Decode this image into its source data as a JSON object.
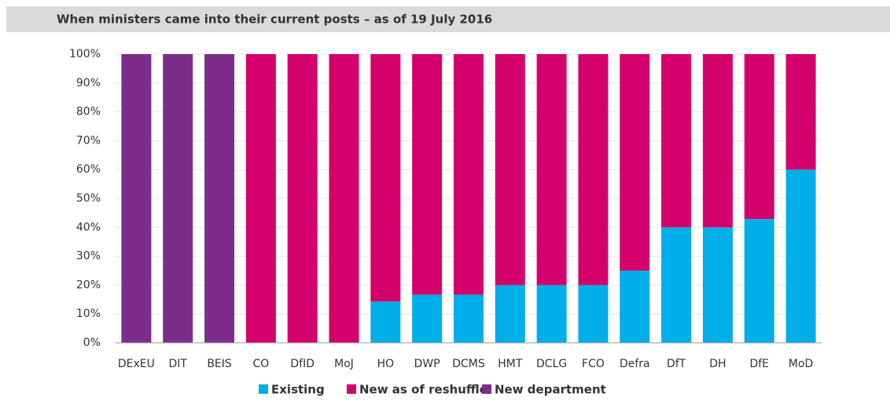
{
  "chart_data": {
    "type": "stacked_bar",
    "title": "When ministers came into their current posts – as of 19 July 2016",
    "categories": [
      "DExEU",
      "DIT",
      "BEIS",
      "CO",
      "DfID",
      "MoJ",
      "HO",
      "DWP",
      "DCMS",
      "HMT",
      "DCLG",
      "FCO",
      "Defra",
      "DfT",
      "DH",
      "DfE",
      "MoD"
    ],
    "series": [
      {
        "name": "Existing",
        "color": "#00aee8",
        "values": [
          0,
          0,
          0,
          0,
          0,
          0,
          14.3,
          16.7,
          16.7,
          20,
          20,
          20,
          25,
          40,
          40,
          42.9,
          60
        ]
      },
      {
        "name": "New as of reshuffle",
        "color": "#d4006c",
        "values": [
          0,
          0,
          0,
          100,
          100,
          100,
          85.7,
          83.3,
          83.3,
          80,
          80,
          80,
          75,
          60,
          60,
          57.1,
          40
        ]
      },
      {
        "name": "New department",
        "color": "#7a2e8a",
        "values": [
          100,
          100,
          100,
          0,
          0,
          0,
          0,
          0,
          0,
          0,
          0,
          0,
          0,
          0,
          0,
          0,
          0
        ]
      }
    ],
    "ylim": [
      0,
      100
    ],
    "yticks": [
      {
        "value": 0,
        "label": "0%"
      },
      {
        "value": 10,
        "label": "10%"
      },
      {
        "value": 20,
        "label": "20%"
      },
      {
        "value": 30,
        "label": "30%"
      },
      {
        "value": 40,
        "label": "40%"
      },
      {
        "value": 50,
        "label": "50%"
      },
      {
        "value": 60,
        "label": "60%"
      },
      {
        "value": 70,
        "label": "70%"
      },
      {
        "value": 80,
        "label": "80%"
      },
      {
        "value": 90,
        "label": "90%"
      },
      {
        "value": 100,
        "label": "100%"
      }
    ],
    "grid": true
  }
}
